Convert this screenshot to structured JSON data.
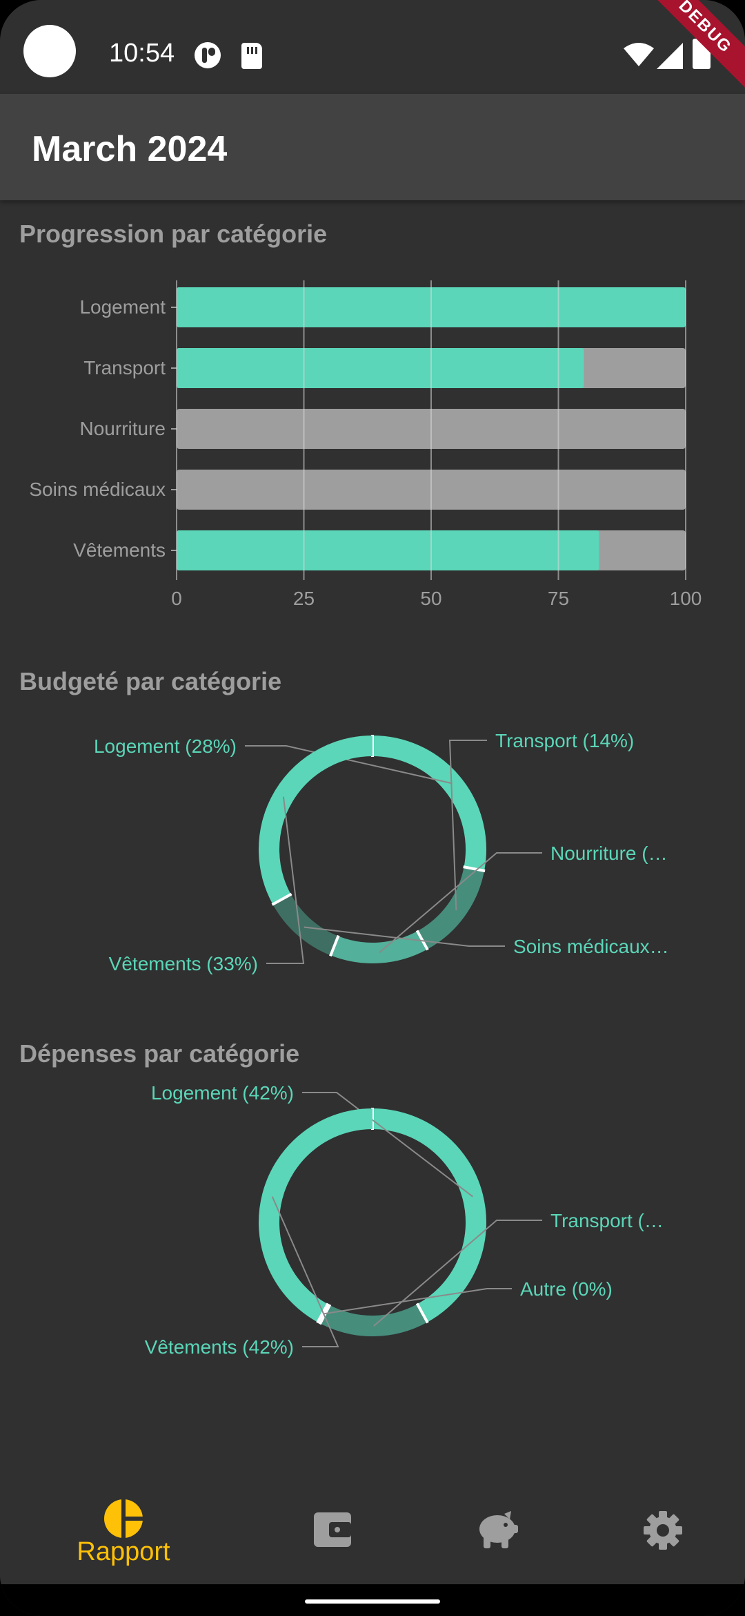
{
  "status_bar": {
    "time": "10:54",
    "debug_banner": "DEBUG"
  },
  "app_bar": {
    "title": "March 2024"
  },
  "sections": {
    "progress_title": "Progression par catégorie",
    "budget_title": "Budgeté par catégorie",
    "spend_title": "Dépenses par catégorie"
  },
  "colors": {
    "accent": "#5bd6b8",
    "track": "#9e9e9e",
    "background": "#303030",
    "nav_active": "#ffc107"
  },
  "chart_data": [
    {
      "type": "bar",
      "orientation": "horizontal",
      "title": "Progression par catégorie",
      "categories": [
        "Logement",
        "Transport",
        "Nourriture",
        "Soins médicaux",
        "Vêtements"
      ],
      "values": [
        100,
        80,
        0,
        0,
        83
      ],
      "xlim": [
        0,
        100
      ],
      "ticks": [
        "0",
        "25",
        "50",
        "75",
        "100"
      ],
      "grid": true
    },
    {
      "type": "pie",
      "title": "Budgeté par catégorie",
      "donut": true,
      "labels": [
        "Logement (28%)",
        "Transport (14%)",
        "Nourriture (…",
        "Soins médicaux…",
        "Vêtements (33%)"
      ],
      "values": [
        28,
        14,
        14,
        11,
        33
      ],
      "colors": [
        "#5bd6b8",
        "#468d7c",
        "#53b09a",
        "#3f6f63",
        "#5bd6b8"
      ]
    },
    {
      "type": "pie",
      "title": "Dépenses par catégorie",
      "donut": true,
      "labels": [
        "Logement (42%)",
        "Transport (…",
        "Autre (0%)",
        "Vêtements (42%)"
      ],
      "values": [
        42,
        15.6,
        0.4,
        42
      ],
      "colors": [
        "#5bd6b8",
        "#468d7c",
        "#5bd6b8",
        "#5bd6b8"
      ]
    }
  ],
  "bottom_nav": {
    "items": [
      {
        "label": "Rapport",
        "icon": "pie-chart-icon",
        "active": true
      },
      {
        "label": "",
        "icon": "wallet-icon",
        "active": false
      },
      {
        "label": "",
        "icon": "piggy-bank-icon",
        "active": false
      },
      {
        "label": "",
        "icon": "gear-icon",
        "active": false
      }
    ]
  }
}
